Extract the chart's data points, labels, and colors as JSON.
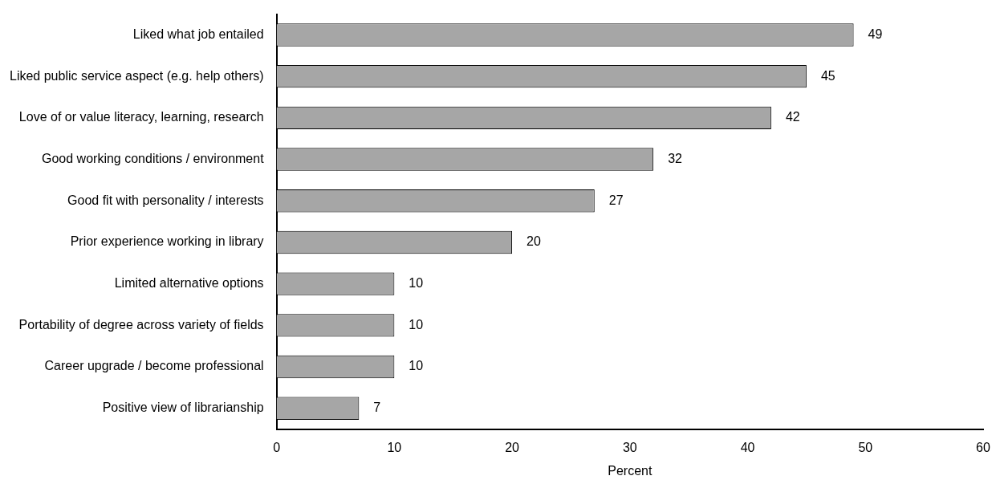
{
  "chart_data": {
    "type": "bar",
    "orientation": "horizontal",
    "xlabel": "Percent",
    "categories": [
      "Liked what job entailed",
      "Liked public service aspect (e.g. help others)",
      "Love of or value literacy, learning, research",
      "Good working conditions / environment",
      "Good fit with personality / interests",
      "Prior experience working in library",
      "Limited alternative options",
      "Portability of degree across variety of fields",
      "Career upgrade / become professional",
      "Positive view of librarianship"
    ],
    "values": [
      49,
      45,
      42,
      32,
      27,
      20,
      10,
      10,
      10,
      7
    ],
    "color": "#a6a6a6",
    "xlim": [
      0,
      60
    ],
    "xticks": [
      0,
      10,
      20,
      30,
      40,
      50,
      60
    ],
    "data_labels": true,
    "grid": false,
    "legend": false
  }
}
